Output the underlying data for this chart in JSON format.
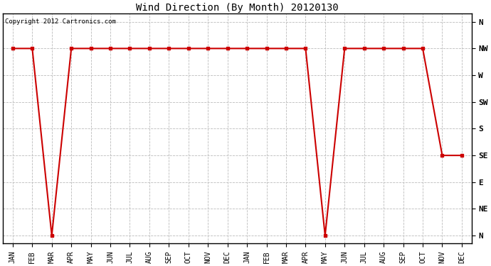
{
  "title": "Wind Direction (By Month) 20120130",
  "copyright": "Copyright 2012 Cartronics.com",
  "x_labels": [
    "JAN",
    "FEB",
    "MAR",
    "APR",
    "MAY",
    "JUN",
    "JUL",
    "AUG",
    "SEP",
    "OCT",
    "NOV",
    "DEC",
    "JAN",
    "FEB",
    "MAR",
    "APR",
    "MAY",
    "JUN",
    "JUL",
    "AUG",
    "SEP",
    "OCT",
    "NOV",
    "DEC"
  ],
  "y_labels_top_to_bottom": [
    "N",
    "NW",
    "W",
    "SW",
    "S",
    "SE",
    "E",
    "NE",
    "N"
  ],
  "line_data_x": [
    0,
    1,
    2,
    3,
    4,
    5,
    6,
    7,
    8,
    9,
    10,
    11,
    12,
    13,
    14,
    15,
    16,
    17,
    18,
    19,
    20,
    21,
    22,
    23
  ],
  "line_data_y": [
    7,
    7,
    0,
    7,
    7,
    7,
    7,
    7,
    7,
    7,
    7,
    7,
    7,
    7,
    7,
    7,
    0,
    7,
    7,
    7,
    7,
    7,
    3,
    3
  ],
  "line_color": "#cc0000",
  "marker": "s",
  "marker_size": 3,
  "bg_color": "#ffffff",
  "grid_color": "#bbbbbb",
  "title_fontsize": 10,
  "copyright_fontsize": 6.5,
  "tick_fontsize": 7,
  "ylabel_fontsize": 8
}
